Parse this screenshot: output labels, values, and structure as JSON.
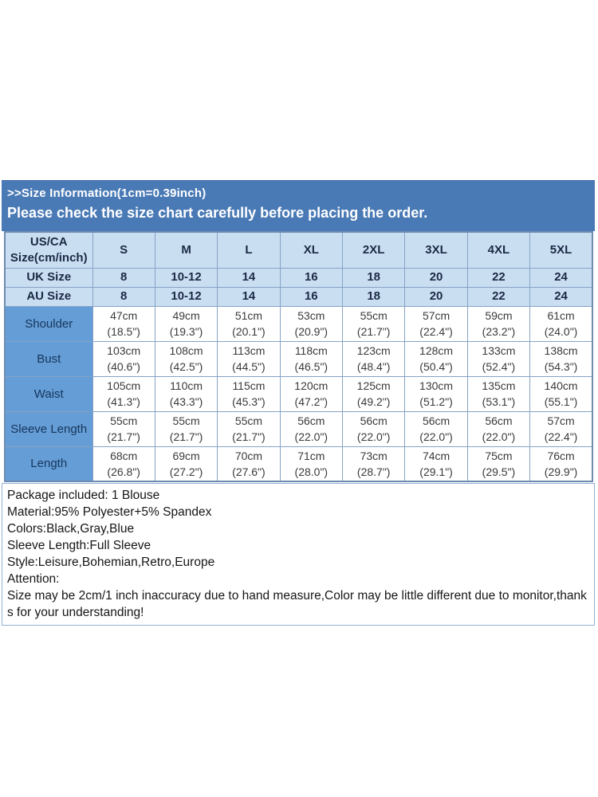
{
  "header": {
    "line1": ">>Size Information(1cm=0.39inch)",
    "line2": "Please check the size chart carefully before placing the order."
  },
  "size_table": {
    "columns": [
      "US/CA\nSize(cm/inch)",
      "S",
      "M",
      "L",
      "XL",
      "2XL",
      "3XL",
      "4XL",
      "5XL"
    ],
    "uk_row": {
      "label": "UK Size",
      "values": [
        "8",
        "10-12",
        "14",
        "16",
        "18",
        "20",
        "22",
        "24"
      ]
    },
    "au_row": {
      "label": "AU Size",
      "values": [
        "8",
        "10-12",
        "14",
        "16",
        "18",
        "20",
        "22",
        "24"
      ]
    },
    "measurement_rows": [
      {
        "label": "Shoulder",
        "values": [
          "47cm\n(18.5\")",
          "49cm\n(19.3\")",
          "51cm\n(20.1\")",
          "53cm\n(20.9\")",
          "55cm\n(21.7\")",
          "57cm\n(22.4\")",
          "59cm\n(23.2\")",
          "61cm\n(24.0\")"
        ]
      },
      {
        "label": "Bust",
        "values": [
          "103cm\n(40.6\")",
          "108cm\n(42.5\")",
          "113cm\n(44.5\")",
          "118cm\n(46.5\")",
          "123cm\n(48.4\")",
          "128cm\n(50.4\")",
          "133cm\n(52.4\")",
          "138cm\n(54.3\")"
        ]
      },
      {
        "label": "Waist",
        "values": [
          "105cm\n(41.3\")",
          "110cm\n(43.3\")",
          "115cm\n(45.3\")",
          "120cm\n(47.2\")",
          "125cm\n(49.2\")",
          "130cm\n(51.2\")",
          "135cm\n(53.1\")",
          "140cm\n(55.1\")"
        ]
      },
      {
        "label": "Sleeve Length",
        "values": [
          "55cm\n(21.7\")",
          "55cm\n(21.7\")",
          "55cm\n(21.7\")",
          "56cm\n(22.0\")",
          "56cm\n(22.0\")",
          "56cm\n(22.0\")",
          "56cm\n(22.0\")",
          "57cm\n(22.4\")"
        ]
      },
      {
        "label": "Length",
        "values": [
          "68cm\n(26.8\")",
          "69cm\n(27.2\")",
          "70cm\n(27.6\")",
          "71cm\n(28.0\")",
          "73cm\n(28.7\")",
          "74cm\n(29.1\")",
          "75cm\n(29.5\")",
          "76cm\n(29.9\")"
        ]
      }
    ]
  },
  "notes": {
    "lines": [
      "Package included: 1 Blouse",
      "Material:95% Polyester+5% Spandex",
      "Colors:Black,Gray,Blue",
      "Sleeve Length:Full Sleeve",
      "Style:Leisure,Bohemian,Retro,Europe",
      "Attention:",
      "Size may be 2cm/1 inch inaccuracy due to hand measure,Color may be little different due to monitor,thanks for your understanding!"
    ]
  },
  "colors": {
    "band_blue": "#4a7ab5",
    "light_cell_blue": "#cadef2",
    "label_cell_blue": "#659dd6",
    "table_border": "#85a3c6",
    "header_text": "#1b2a44",
    "band_text": "#ffffff"
  }
}
